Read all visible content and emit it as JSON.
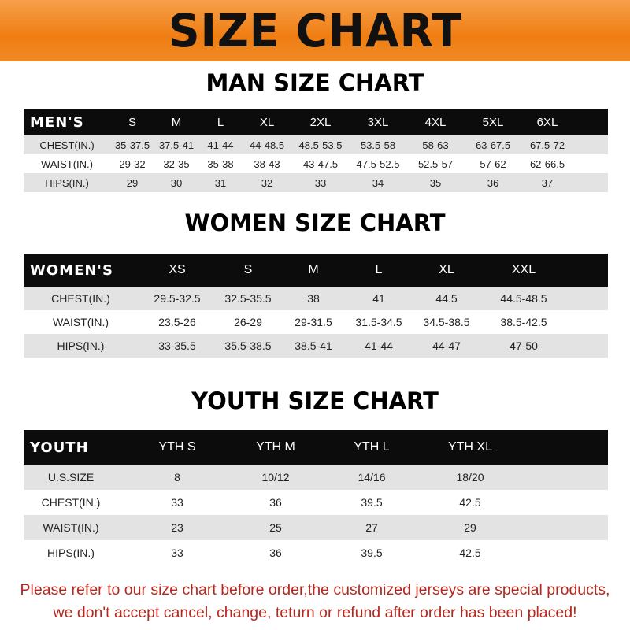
{
  "banner": {
    "title": "SIZE CHART",
    "color": "#ef7d12"
  },
  "men": {
    "title": "MAN SIZE CHART",
    "header": [
      "MEN'S",
      "S",
      "M",
      "L",
      "XL",
      "2XL",
      "3XL",
      "4XL",
      "5XL",
      "6XL"
    ],
    "rows": [
      [
        "CHEST(IN.)",
        "35-37.5",
        "37.5-41",
        "41-44",
        "44-48.5",
        "48.5-53.5",
        "53.5-58",
        "58-63",
        "63-67.5",
        "67.5-72"
      ],
      [
        "WAIST(IN.)",
        "29-32",
        "32-35",
        "35-38",
        "38-43",
        "43-47.5",
        "47.5-52.5",
        "52.5-57",
        "57-62",
        "62-66.5"
      ],
      [
        "HIPS(IN.)",
        "29",
        "30",
        "31",
        "32",
        "33",
        "34",
        "35",
        "36",
        "37"
      ]
    ]
  },
  "women": {
    "title": "WOMEN SIZE CHART",
    "header": [
      "WOMEN'S",
      "XS",
      "S",
      "M",
      "L",
      "XL",
      "XXL"
    ],
    "rows": [
      [
        "CHEST(IN.)",
        "29.5-32.5",
        "32.5-35.5",
        "38",
        "41",
        "44.5",
        "44.5-48.5"
      ],
      [
        "WAIST(IN.)",
        "23.5-26",
        "26-29",
        "29-31.5",
        "31.5-34.5",
        "34.5-38.5",
        "38.5-42.5"
      ],
      [
        "HIPS(IN.)",
        "33-35.5",
        "35.5-38.5",
        "38.5-41",
        "41-44",
        "44-47",
        "47-50"
      ]
    ]
  },
  "youth": {
    "title": "YOUTH SIZE CHART",
    "header": [
      "YOUTH",
      "YTH S",
      "YTH M",
      "YTH L",
      "YTH XL"
    ],
    "rows": [
      [
        "U.S.SIZE",
        "8",
        "10/12",
        "14/16",
        "18/20"
      ],
      [
        "CHEST(IN.)",
        "33",
        "36",
        "39.5",
        "42.5"
      ],
      [
        "WAIST(IN.)",
        "23",
        "25",
        "27",
        "29"
      ],
      [
        "HIPS(IN.)",
        "33",
        "36",
        "39.5",
        "42.5"
      ]
    ]
  },
  "note": {
    "line1": "Please refer to our size chart before order,the customized jerseys are special products,",
    "line2": "we don't accept cancel, change, teturn or refund after order has been placed!",
    "color": "#b5281f"
  }
}
